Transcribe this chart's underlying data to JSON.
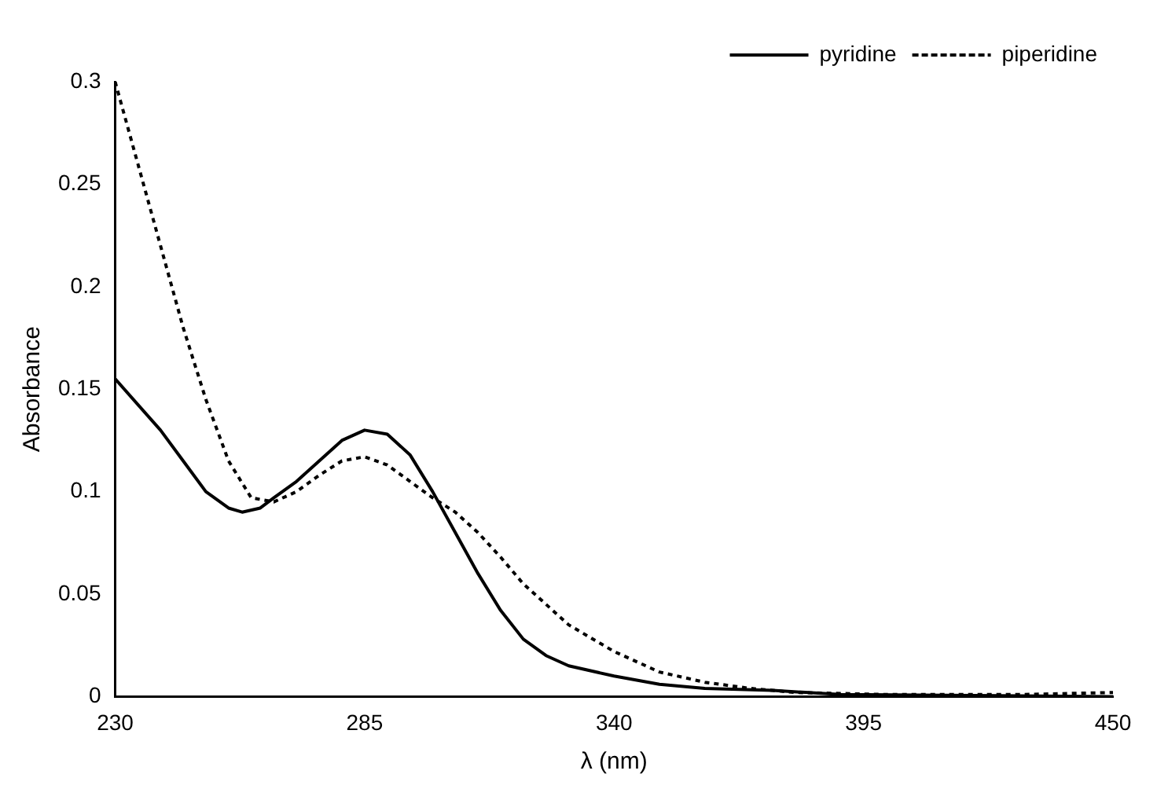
{
  "chart_data": {
    "type": "line",
    "xlabel": "λ (nm)",
    "ylabel": "Absorbance",
    "xlim": [
      230,
      450
    ],
    "xticks": [
      230,
      285,
      340,
      395,
      450
    ],
    "ylim": [
      0,
      0.3
    ],
    "yticks": [
      0,
      0.05,
      0.1,
      0.15,
      0.2,
      0.25,
      0.3
    ],
    "legend": "top right",
    "marker": "none",
    "series": [
      {
        "name": "pyridine",
        "color": "#000000",
        "line_style": "solid",
        "x": [
          230,
          240,
          245,
          250,
          255,
          258,
          262,
          265,
          270,
          275,
          280,
          285,
          290,
          295,
          300,
          305,
          310,
          315,
          320,
          325,
          330,
          340,
          350,
          360,
          375,
          390,
          450
        ],
        "values": [
          0.155,
          0.13,
          0.115,
          0.1,
          0.092,
          0.09,
          0.092,
          0.097,
          0.105,
          0.115,
          0.125,
          0.13,
          0.128,
          0.118,
          0.1,
          0.08,
          0.06,
          0.042,
          0.028,
          0.02,
          0.015,
          0.01,
          0.006,
          0.004,
          0.003,
          0.001,
          0
        ]
      },
      {
        "name": "piperidine",
        "color": "#000000",
        "line_style": "dotted",
        "x": [
          230,
          235,
          240,
          245,
          250,
          255,
          260,
          265,
          270,
          275,
          280,
          285,
          290,
          295,
          300,
          305,
          310,
          315,
          320,
          325,
          330,
          340,
          350,
          360,
          370,
          380,
          400,
          430,
          450
        ],
        "values": [
          0.3,
          0.26,
          0.22,
          0.18,
          0.145,
          0.115,
          0.097,
          0.095,
          0.1,
          0.108,
          0.115,
          0.117,
          0.113,
          0.105,
          0.097,
          0.09,
          0.08,
          0.068,
          0.055,
          0.045,
          0.035,
          0.022,
          0.012,
          0.007,
          0.004,
          0.002,
          0.001,
          0.001,
          0.002
        ]
      }
    ]
  }
}
